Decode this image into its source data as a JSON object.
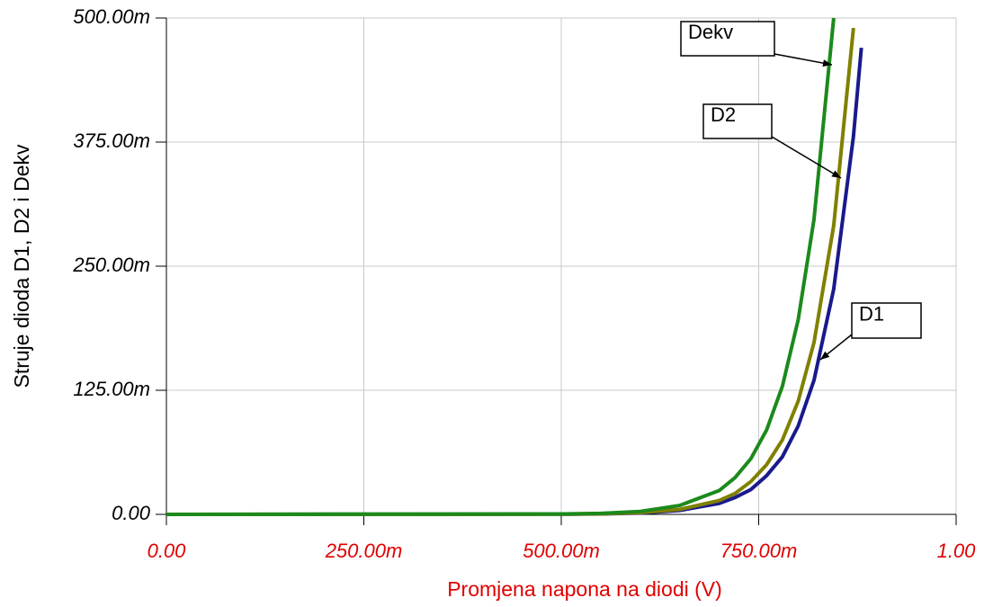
{
  "chart_data": {
    "type": "line",
    "xlabel": "Promjena napona na diodi (V)",
    "ylabel": "Struje dioda D1, D2 i  Dekv",
    "x": [
      0,
      0.5,
      0.55,
      0.6,
      0.65,
      0.7,
      0.72,
      0.74,
      0.76,
      0.78,
      0.8,
      0.82,
      0.845,
      0.87,
      0.88
    ],
    "series": [
      {
        "name": "Dekv",
        "color": "#1b8a1b",
        "values": [
          0,
          0.0004,
          0.001,
          0.003,
          0.009,
          0.024,
          0.037,
          0.056,
          0.085,
          0.129,
          0.196,
          0.297,
          0.5,
          null,
          null
        ]
      },
      {
        "name": "D2",
        "color": "#808000",
        "values": [
          0,
          0.0002,
          0.0006,
          0.0018,
          0.005,
          0.014,
          0.021,
          0.033,
          0.05,
          0.075,
          0.114,
          0.173,
          0.291,
          0.49,
          null
        ]
      },
      {
        "name": "D1",
        "color": "#1a1a8c",
        "values": [
          0,
          0.0002,
          0.0005,
          0.0014,
          0.004,
          0.011,
          0.017,
          0.025,
          0.039,
          0.058,
          0.089,
          0.135,
          0.227,
          0.381,
          0.47
        ]
      }
    ],
    "annotations": [
      {
        "text": "Dekv"
      },
      {
        "text": "D2"
      },
      {
        "text": "D1"
      }
    ],
    "xlim": [
      0,
      1
    ],
    "xticks": [
      {
        "value": 0,
        "label": "0.00"
      },
      {
        "value": 0.25,
        "label": "250.00m"
      },
      {
        "value": 0.5,
        "label": "500.00m"
      },
      {
        "value": 0.75,
        "label": "750.00m"
      },
      {
        "value": 1,
        "label": "1.00"
      }
    ],
    "ylim": [
      0,
      0.5
    ],
    "yticks": [
      {
        "value": 0,
        "label": "0.00"
      },
      {
        "value": 0.125,
        "label": "125.00m"
      },
      {
        "value": 0.25,
        "label": "250.00m"
      },
      {
        "value": 0.375,
        "label": "375.00m"
      },
      {
        "value": 0.5,
        "label": "500.00m"
      }
    ],
    "grid": true
  }
}
